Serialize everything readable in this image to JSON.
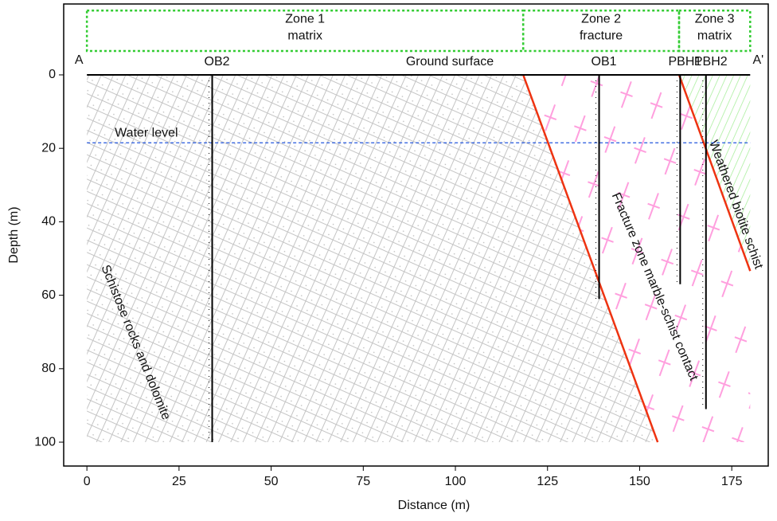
{
  "chart_data": {
    "type": "cross-section",
    "x_label": "Distance (m)",
    "y_label": "Depth (m)",
    "xlim": [
      -6.3,
      184.9
    ],
    "ylim": [
      -19.3,
      106.5
    ],
    "xticks": [
      0,
      25,
      50,
      75,
      100,
      125,
      150,
      175
    ],
    "yticks": [
      0,
      20,
      40,
      60,
      80,
      100
    ],
    "section_start": "A",
    "section_end": "A'",
    "ground_surface": {
      "name": "Ground surface",
      "y": 0,
      "x": [
        0,
        180
      ]
    },
    "water_level": {
      "name": "Water level",
      "y": 18.5,
      "x": [
        0,
        180
      ],
      "color": "#2255dd"
    },
    "zones": [
      {
        "name": "Zone 1",
        "kind": "matrix",
        "x": [
          0,
          118.4
        ]
      },
      {
        "name": "Zone 2",
        "kind": "fracture",
        "x": [
          118.4,
          160.7
        ]
      },
      {
        "name": "Zone 3",
        "kind": "matrix",
        "x": [
          160.7,
          180
        ]
      }
    ],
    "zone_band": [
      -17.5,
      -6.5
    ],
    "zone_color": "#33cc33",
    "formations": [
      {
        "name": "Schistose rocks and dolomite",
        "color": "#bbbbbb",
        "x": [
          0,
          118.4,
          154.9,
          0
        ],
        "y": [
          0,
          0,
          100,
          100
        ]
      },
      {
        "name": "Fracture zone marble-schist contact",
        "color": "#ff99dd",
        "x": [
          118.4,
          160.7,
          180,
          180,
          154.9
        ],
        "y": [
          0,
          0,
          53.4,
          100,
          100
        ]
      },
      {
        "name": "Weathered biotite schist",
        "color": "#99ee88",
        "x": [
          160.7,
          180,
          180
        ],
        "y": [
          0,
          0,
          53.4
        ]
      }
    ],
    "contacts": [
      {
        "x": [
          118.4,
          154.9
        ],
        "y": [
          0,
          100
        ]
      },
      {
        "x": [
          160.7,
          180
        ],
        "y": [
          0,
          53.4
        ]
      }
    ],
    "contact_color": "#ee3311",
    "wells": [
      {
        "name": "OB2",
        "x": 34,
        "depth": 100
      },
      {
        "name": "OB1",
        "x": 139,
        "depth": 61
      },
      {
        "name": "PBH1",
        "x": 161,
        "depth": 57
      },
      {
        "name": "PBH2",
        "x": 168,
        "depth": 91
      }
    ]
  }
}
